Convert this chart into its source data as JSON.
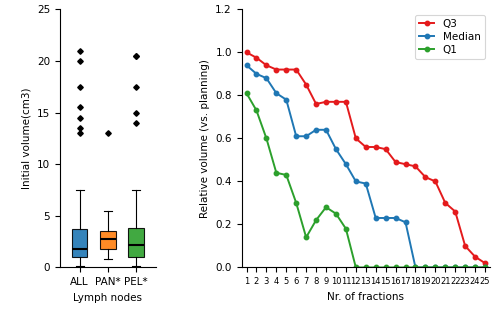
{
  "boxplot": {
    "ALL": {
      "median": 1.8,
      "q1": 1.0,
      "q3": 3.7,
      "whislo": 0.1,
      "whishi": 7.5,
      "fliers": [
        13.0,
        13.5,
        14.5,
        15.5,
        17.5,
        20.0,
        21.0
      ],
      "color": "#1f77b4"
    },
    "PAN*": {
      "median": 2.8,
      "q1": 1.8,
      "q3": 3.5,
      "whislo": 0.8,
      "whishi": 5.5,
      "fliers": [
        13.0
      ],
      "color": "#ff7f0e"
    },
    "PEL*": {
      "median": 2.2,
      "q1": 1.0,
      "q3": 3.8,
      "whislo": 0.1,
      "whishi": 7.5,
      "fliers": [
        14.0,
        15.0,
        17.5,
        20.5,
        20.5
      ],
      "color": "#2ca02c"
    }
  },
  "boxplot_xlabels": [
    "ALL",
    "PAN*",
    "PEL*"
  ],
  "boxplot_ylabel": "Initial volume(cm3)",
  "boxplot_xlabel": "Lymph nodes",
  "boxplot_ylim": [
    0,
    25
  ],
  "boxplot_yticks": [
    0,
    5,
    10,
    15,
    20,
    25
  ],
  "line_fractions": [
    1,
    2,
    3,
    4,
    5,
    6,
    7,
    8,
    9,
    10,
    11,
    12,
    13,
    14,
    15,
    16,
    17,
    18,
    19,
    20,
    21,
    22,
    23,
    24,
    25
  ],
  "Q3": [
    1.0,
    0.975,
    0.94,
    0.92,
    0.92,
    0.92,
    0.85,
    0.76,
    0.77,
    0.77,
    0.77,
    0.6,
    0.56,
    0.56,
    0.55,
    0.49,
    0.48,
    0.47,
    0.42,
    0.4,
    0.3,
    0.26,
    0.1,
    0.05,
    0.02
  ],
  "Median": [
    0.94,
    0.9,
    0.88,
    0.81,
    0.78,
    0.61,
    0.61,
    0.64,
    0.64,
    0.55,
    0.48,
    0.4,
    0.39,
    0.23,
    0.23,
    0.23,
    0.21,
    0.0,
    0.0,
    0.0,
    0.0,
    0.0,
    0.0,
    0.0,
    0.0
  ],
  "Q1": [
    0.81,
    0.73,
    0.6,
    0.44,
    0.43,
    0.3,
    0.14,
    0.22,
    0.28,
    0.25,
    0.18,
    0.0,
    0.0,
    0.0,
    0.0,
    0.0,
    0.0,
    0.0,
    0.0,
    0.0,
    0.0,
    0.0,
    0.0,
    0.0,
    0.0
  ],
  "line_ylabel": "Relative volume (vs. planning)",
  "line_xlabel": "Nr. of fractions",
  "line_ylim": [
    0.0,
    1.2
  ],
  "line_yticks": [
    0.0,
    0.2,
    0.4,
    0.6,
    0.8,
    1.0,
    1.2
  ],
  "Q3_color": "#e41a1c",
  "Median_color": "#1f77b4",
  "Q1_color": "#2ca02c",
  "background_color": "#ffffff"
}
